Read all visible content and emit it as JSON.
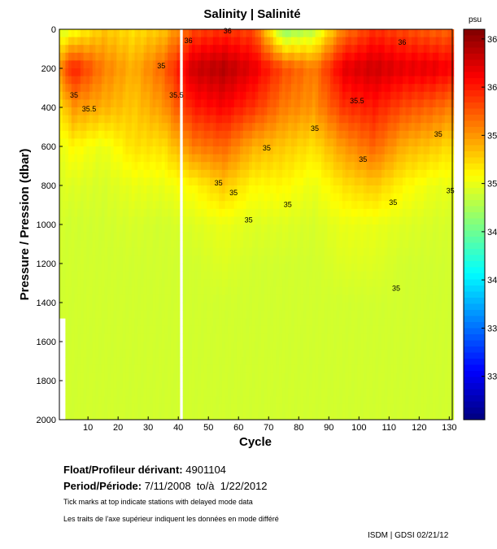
{
  "chart_data": {
    "type": "heatmap",
    "title": "Salinity | Salinité",
    "xlabel": "Cycle",
    "ylabel": "Pressure / Pression (dbar)",
    "xlim": [
      0.5,
      131
    ],
    "ylim": [
      2000,
      0
    ],
    "x_ticks": [
      10,
      20,
      30,
      40,
      50,
      60,
      70,
      80,
      90,
      100,
      110,
      120,
      130
    ],
    "y_ticks": [
      0,
      200,
      400,
      600,
      800,
      1000,
      1200,
      1400,
      1600,
      1800,
      2000
    ],
    "colorbar": {
      "label": "psu",
      "range": [
        32.55,
        36.6
      ],
      "ticks": [
        33,
        33.5,
        34,
        34.5,
        35,
        35.5,
        36,
        36.5
      ],
      "colormap": "jet"
    },
    "grid_cycles": [
      1,
      5,
      15,
      25,
      35,
      45,
      55,
      65,
      75,
      85,
      95,
      105,
      115,
      125,
      131
    ],
    "grid_pressures": [
      0,
      200,
      400,
      600,
      800,
      1000,
      1200,
      1400,
      1600,
      1800,
      2000
    ],
    "salinity": [
      [
        34.9,
        35.6,
        35.2,
        35.0,
        34.95,
        34.9,
        34.9,
        34.9,
        34.9,
        34.9,
        34.9
      ],
      [
        35.0,
        36.0,
        35.5,
        35.1,
        34.95,
        34.9,
        34.9,
        34.9,
        34.9,
        34.9,
        34.9
      ],
      [
        35.3,
        35.6,
        35.4,
        35.0,
        34.92,
        34.9,
        34.9,
        34.9,
        34.9,
        34.9,
        34.9
      ],
      [
        35.2,
        35.4,
        35.3,
        35.2,
        35.0,
        34.92,
        34.9,
        34.9,
        34.9,
        34.9,
        34.9
      ],
      [
        35.3,
        35.7,
        35.5,
        35.2,
        35.0,
        34.9,
        34.9,
        34.9,
        34.9,
        34.9,
        34.9
      ],
      [
        35.8,
        36.3,
        36.0,
        35.6,
        35.1,
        34.95,
        34.9,
        34.9,
        34.9,
        34.9,
        34.9
      ],
      [
        35.9,
        36.4,
        36.1,
        35.7,
        35.3,
        35.0,
        34.95,
        34.9,
        34.9,
        34.9,
        34.9
      ],
      [
        35.8,
        36.2,
        35.9,
        35.4,
        35.1,
        34.95,
        34.9,
        34.9,
        34.9,
        34.9,
        34.9
      ],
      [
        34.6,
        35.8,
        35.6,
        35.3,
        35.1,
        34.95,
        34.9,
        34.9,
        34.9,
        34.9,
        34.9
      ],
      [
        34.8,
        35.6,
        35.5,
        35.2,
        35.0,
        34.92,
        34.9,
        34.9,
        34.9,
        34.9,
        34.9
      ],
      [
        35.6,
        36.2,
        35.9,
        35.5,
        35.2,
        35.0,
        34.95,
        34.9,
        34.9,
        34.9,
        34.9
      ],
      [
        35.9,
        36.3,
        36.0,
        35.7,
        35.3,
        35.0,
        34.95,
        34.9,
        34.9,
        34.9,
        34.9
      ],
      [
        35.8,
        36.2,
        35.8,
        35.4,
        35.1,
        34.95,
        34.9,
        34.9,
        34.9,
        34.9,
        34.9
      ],
      [
        35.7,
        36.2,
        35.7,
        35.3,
        35.0,
        34.92,
        34.9,
        34.9,
        34.9,
        34.9,
        34.9
      ],
      [
        35.7,
        36.1,
        35.6,
        35.2,
        35.0,
        34.92,
        34.9,
        34.9,
        34.9,
        34.9,
        34.9
      ]
    ],
    "missing_cycles": [
      41
    ],
    "contour_labels": [
      {
        "text": "35.5",
        "cycle": 8,
        "pressure": 420
      },
      {
        "text": "35",
        "cycle": 4,
        "pressure": 350
      },
      {
        "text": "36",
        "cycle": 42,
        "pressure": 70
      },
      {
        "text": "36",
        "cycle": 55,
        "pressure": 20
      },
      {
        "text": "35.5",
        "cycle": 37,
        "pressure": 350
      },
      {
        "text": "35",
        "cycle": 33,
        "pressure": 200
      },
      {
        "text": "35",
        "cycle": 52,
        "pressure": 800
      },
      {
        "text": "35",
        "cycle": 57,
        "pressure": 850
      },
      {
        "text": "35",
        "cycle": 62,
        "pressure": 990
      },
      {
        "text": "35",
        "cycle": 68,
        "pressure": 620
      },
      {
        "text": "35",
        "cycle": 75,
        "pressure": 910
      },
      {
        "text": "35",
        "cycle": 84,
        "pressure": 520
      },
      {
        "text": "35.5",
        "cycle": 97,
        "pressure": 380
      },
      {
        "text": "35",
        "cycle": 100,
        "pressure": 680
      },
      {
        "text": "35",
        "cycle": 110,
        "pressure": 900
      },
      {
        "text": "35",
        "cycle": 111,
        "pressure": 1340
      },
      {
        "text": "35",
        "cycle": 125,
        "pressure": 550
      },
      {
        "text": "35",
        "cycle": 129,
        "pressure": 840
      },
      {
        "text": "36",
        "cycle": 113,
        "pressure": 80
      }
    ]
  },
  "info": {
    "float_label": "Float/Profileur dérivant:",
    "float_id": "4901104",
    "period_label": "Period/Période:",
    "period_value": "7/11/2008  to/à  1/22/2012",
    "note_en": "Tick marks at top indicate stations with delayed mode data",
    "note_fr": "Les traits de l'axe supérieur indiquent les données en mode différé",
    "credit": "ISDM | GDSI  02/21/12"
  }
}
